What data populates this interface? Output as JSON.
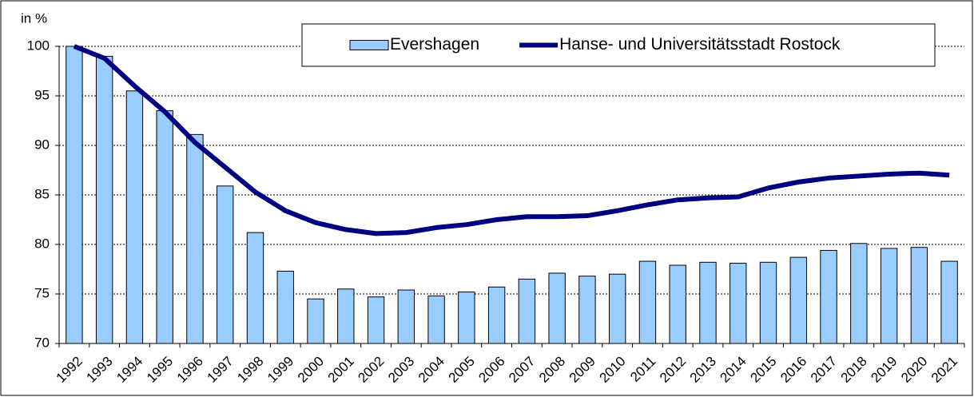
{
  "chart_data": {
    "type": "bar-line",
    "y_label": "in %",
    "categories": [
      "1992",
      "1993",
      "1994",
      "1995",
      "1996",
      "1997",
      "1998",
      "1999",
      "2000",
      "2001",
      "2002",
      "2003",
      "2004",
      "2005",
      "2006",
      "2007",
      "2008",
      "2009",
      "2010",
      "2011",
      "2012",
      "2013",
      "2014",
      "2015",
      "2016",
      "2017",
      "2018",
      "2019",
      "2020",
      "2021"
    ],
    "series": [
      {
        "name": "Evershagen",
        "type": "bar",
        "color": "#99ccff",
        "values": [
          100,
          99,
          95.5,
          93.5,
          91.1,
          85.9,
          81.2,
          77.3,
          74.5,
          75.5,
          74.7,
          75.4,
          74.8,
          75.2,
          75.7,
          76.5,
          77.1,
          76.8,
          77.0,
          78.3,
          77.9,
          78.2,
          78.1,
          78.2,
          78.7,
          79.4,
          80.1,
          79.6,
          79.7,
          78.3
        ]
      },
      {
        "name": "Hanse- und Universitätsstadt Rostock",
        "type": "line",
        "color": "#000080",
        "values": [
          100,
          98.8,
          96,
          93.4,
          90.3,
          87.8,
          85.3,
          83.4,
          82.2,
          81.5,
          81.1,
          81.2,
          81.7,
          82.0,
          82.5,
          82.8,
          82.8,
          82.9,
          83.4,
          84.0,
          84.5,
          84.7,
          84.8,
          85.7,
          86.3,
          86.7,
          86.9,
          87.1,
          87.2,
          87.0
        ]
      }
    ],
    "ylim": [
      70,
      100
    ],
    "yticks": [
      70,
      75,
      80,
      85,
      90,
      95,
      100
    ],
    "grid": true,
    "legend": "top-right"
  }
}
